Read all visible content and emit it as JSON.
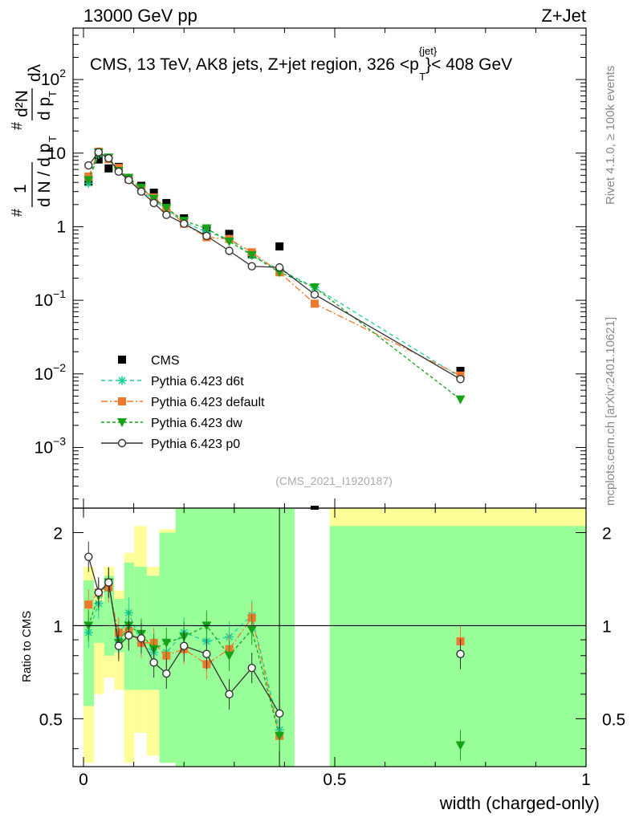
{
  "header": {
    "left": "13000 GeV pp",
    "right": "Z+Jet"
  },
  "side_text": {
    "rivet": "Rivet 4.1.0, ≥ 100k events",
    "mcplots": "mcplots.cern.ch [arXiv:2401.10621]"
  },
  "chart_data": [
    {
      "type": "scatter",
      "panel": "main",
      "title": "CMS, 13 TeV, AK8 jets, Z+jet region, 326 <p",
      "title_sup": "{jet}",
      "title_sub": "T",
      "title_end": "}< 408 GeV",
      "ylabel_parts": [
        "1",
        "d N / d p",
        "T",
        "d²N",
        "d p",
        "T",
        "dλ"
      ],
      "ylabel_hash": "#",
      "yscale": "log",
      "xlim": [
        0,
        1
      ],
      "ylim": [
        0.00015,
        500
      ],
      "y_ticks": [
        {
          "value": 100,
          "mantissa": "10",
          "exp": "2"
        },
        {
          "value": 10,
          "mantissa": "10",
          "exp": ""
        },
        {
          "value": 1,
          "mantissa": "1",
          "exp": ""
        },
        {
          "value": 0.1,
          "mantissa": "10",
          "exp": "−1"
        },
        {
          "value": 0.01,
          "mantissa": "10",
          "exp": "−2"
        },
        {
          "value": 0.001,
          "mantissa": "10",
          "exp": "−3"
        }
      ],
      "watermark": "(CMS_2021_I1920187)",
      "legend": [
        {
          "name": "CMS",
          "color": "#000000",
          "marker": "square",
          "dash": ""
        },
        {
          "name": "Pythia 6.423 d6t",
          "color": "#1fcf9f",
          "marker": "star",
          "dash": "5,4"
        },
        {
          "name": "Pythia 6.423 default",
          "color": "#f0782c",
          "marker": "square",
          "dash": "8,3,2,3"
        },
        {
          "name": "Pythia 6.423 dw",
          "color": "#17a317",
          "marker": "triangle-down",
          "dash": "4,3"
        },
        {
          "name": "Pythia 6.423 p0",
          "color": "#333333",
          "marker": "circle-open",
          "dash": ""
        }
      ],
      "x": [
        0.01,
        0.03,
        0.05,
        0.07,
        0.09,
        0.115,
        0.14,
        0.165,
        0.2,
        0.245,
        0.29,
        0.335,
        0.39,
        0.46,
        0.75
      ],
      "series": [
        {
          "name": "CMS",
          "values": [
            4.1,
            8.2,
            6.2,
            6.5,
            4.6,
            3.6,
            2.9,
            2.1,
            1.3,
            0.92,
            0.8,
            0.42,
            0.54,
            null,
            0.011
          ]
        },
        {
          "name": "Pythia 6.423 d6t",
          "values": [
            3.9,
            9.7,
            8.5,
            5.8,
            4.6,
            3.1,
            2.3,
            1.7,
            1.15,
            0.85,
            0.68,
            0.41,
            0.26,
            0.15,
            0.009
          ]
        },
        {
          "name": "Pythia 6.423 default",
          "values": [
            4.8,
            10.5,
            8.3,
            6.3,
            4.4,
            3.2,
            2.5,
            1.8,
            1.1,
            0.72,
            0.68,
            0.45,
            0.24,
            0.09,
            0.0095
          ]
        },
        {
          "name": "Pythia 6.423 dw",
          "values": [
            4.3,
            10.2,
            8.7,
            5.7,
            4.6,
            3.4,
            2.4,
            1.8,
            1.2,
            0.95,
            0.63,
            0.41,
            0.24,
            0.15,
            0.0045
          ]
        },
        {
          "name": "Pythia 6.423 p0",
          "values": [
            6.8,
            10.3,
            8.5,
            5.6,
            4.3,
            3.0,
            2.1,
            1.45,
            1.1,
            0.75,
            0.47,
            0.29,
            0.28,
            0.12,
            0.0085
          ]
        }
      ]
    },
    {
      "type": "scatter",
      "panel": "ratio",
      "ylabel": "Ratio to CMS",
      "xlabel": "width (charged-only)",
      "ylim": [
        0.35,
        2.4
      ],
      "yscale": "log",
      "x_ticks": [
        0,
        0.5,
        1
      ],
      "x_tick_labels": [
        "0",
        "0.5",
        "1"
      ],
      "y_ticks": [
        0.5,
        1,
        2
      ],
      "y_tick_labels": [
        "0.5",
        "1",
        "2"
      ],
      "band_colors": {
        "stat": "#99ff99",
        "total": "#ffff99"
      },
      "x": [
        0.01,
        0.03,
        0.05,
        0.07,
        0.09,
        0.115,
        0.14,
        0.165,
        0.2,
        0.245,
        0.29,
        0.335,
        0.39,
        0.75
      ],
      "series": [
        {
          "name": "Pythia 6.423 d6t",
          "values": [
            0.95,
            1.18,
            1.37,
            0.9,
            1.1,
            0.88,
            0.82,
            0.82,
            0.95,
            0.89,
            0.92,
            1.08,
            0.46,
            0.81
          ]
        },
        {
          "name": "Pythia 6.423 default",
          "values": [
            1.17,
            1.28,
            1.33,
            0.95,
            0.96,
            0.88,
            0.88,
            0.8,
            0.84,
            0.75,
            0.84,
            1.06,
            0.44,
            0.89
          ]
        },
        {
          "name": "Pythia 6.423 dw",
          "values": [
            1.0,
            1.25,
            1.38,
            0.88,
            1.0,
            0.94,
            0.84,
            0.88,
            0.92,
            1.0,
            0.8,
            0.97,
            0.44,
            0.41
          ]
        },
        {
          "name": "Pythia 6.423 p0",
          "values": [
            1.67,
            1.28,
            1.38,
            0.86,
            0.93,
            0.91,
            0.76,
            0.7,
            0.86,
            0.81,
            0.6,
            0.73,
            0.52,
            0.81
          ]
        }
      ]
    }
  ]
}
